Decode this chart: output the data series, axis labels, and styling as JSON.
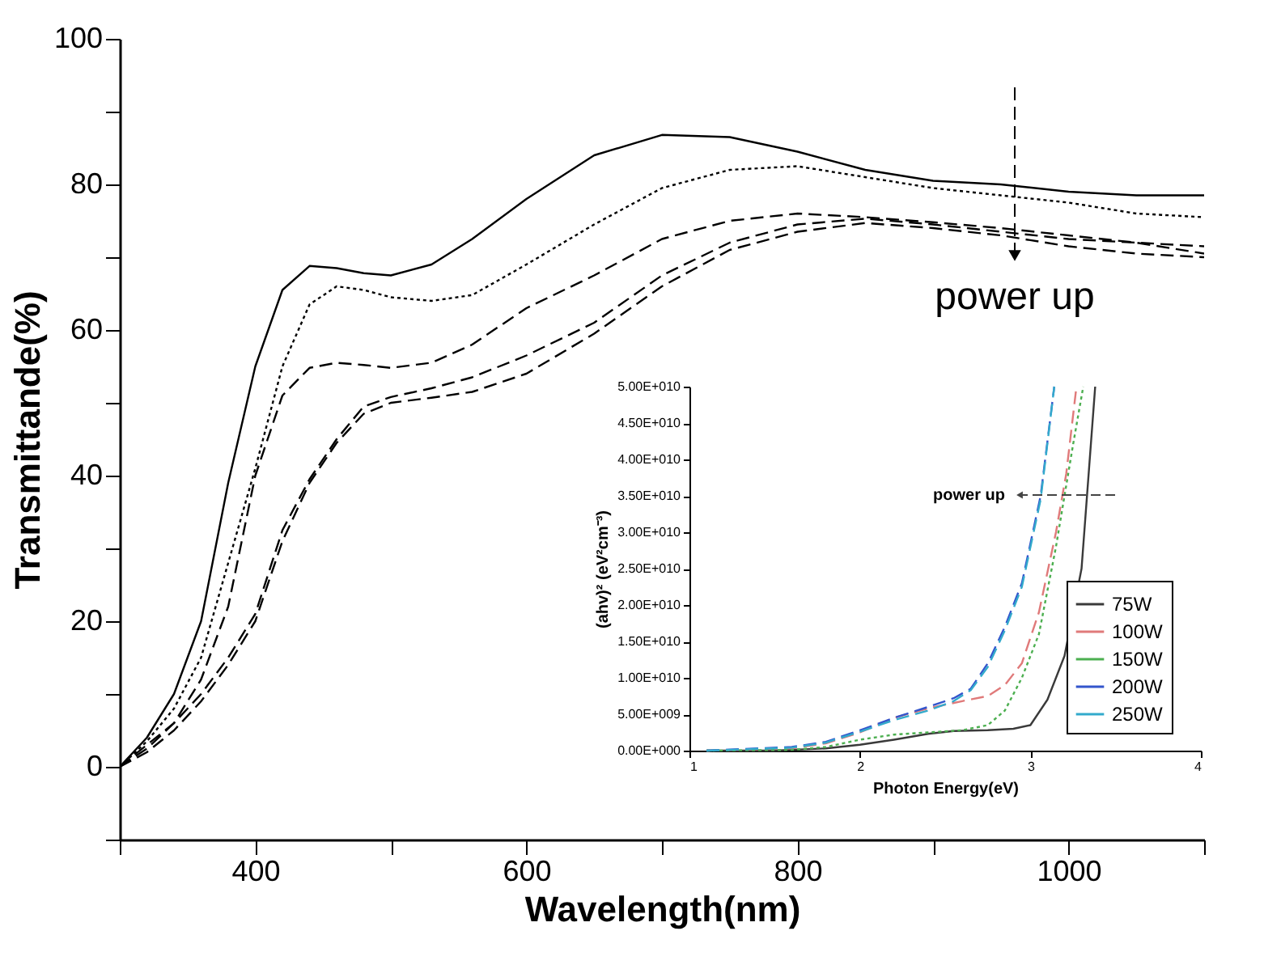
{
  "chart_data": [
    {
      "type": "line",
      "xlabel": "Wavelength(nm)",
      "ylabel": "Transmittande(%)",
      "x": [
        300,
        320,
        340,
        360,
        380,
        400,
        420,
        440,
        460,
        480,
        500,
        530,
        560,
        600,
        650,
        700,
        750,
        800,
        850,
        900,
        950,
        1000,
        1050,
        1100
      ],
      "series": [
        {
          "color": "#000000",
          "line_style": "solid",
          "values": [
            0,
            4,
            10,
            20,
            39,
            55,
            65.5,
            68.8,
            68.5,
            67.8,
            67.5,
            69,
            72.5,
            78,
            84,
            86.8,
            86.5,
            84.5,
            82,
            80.5,
            80,
            79,
            78.5,
            78.5
          ]
        },
        {
          "color": "#000000",
          "line_style": "dotted",
          "values": [
            0,
            3.5,
            8,
            15,
            28,
            41,
            55,
            63.5,
            66,
            65.5,
            64.5,
            64,
            64.8,
            69,
            74.5,
            79.5,
            82,
            82.5,
            81,
            79.5,
            78.5,
            77.5,
            76,
            75.5
          ]
        },
        {
          "color": "#000000",
          "line_style": "dashed",
          "values": [
            0,
            3,
            6,
            12,
            22,
            40,
            51,
            54.8,
            55.5,
            55.2,
            54.8,
            55.5,
            58,
            63,
            67.5,
            72.5,
            75,
            76,
            75.5,
            74.8,
            74,
            73,
            72,
            70.5
          ]
        },
        {
          "color": "#000000",
          "line_style": "dashed",
          "values": [
            0,
            2.5,
            6,
            10,
            15,
            21,
            32.5,
            39.5,
            45,
            49.5,
            50.8,
            52,
            53.5,
            56.5,
            61,
            67.5,
            72,
            74.5,
            75.3,
            74.5,
            73.5,
            72.5,
            72,
            71.5
          ]
        },
        {
          "color": "#000000",
          "line_style": "dashed",
          "values": [
            0,
            2,
            5,
            9,
            14,
            20,
            31,
            39,
            44.5,
            48.5,
            50,
            50.7,
            51.5,
            54,
            59.5,
            66,
            71,
            73.5,
            74.7,
            74,
            73,
            71.5,
            70.5,
            70
          ]
        }
      ],
      "xlim": [
        300,
        1100
      ],
      "xticks": [
        {
          "value": 300,
          "label": null
        },
        400,
        {
          "value": 500,
          "label": null
        },
        600,
        {
          "value": 700,
          "label": null
        },
        800,
        {
          "value": 900,
          "label": null
        },
        1000,
        {
          "value": 1100,
          "label": null
        }
      ],
      "ylim": [
        -10,
        100
      ],
      "yticks": [
        {
          "value": -10,
          "label": null
        },
        0,
        {
          "value": 10,
          "label": null
        },
        20,
        {
          "value": 30,
          "label": null
        },
        40,
        {
          "value": 50,
          "label": null
        },
        60,
        {
          "value": 70,
          "label": null
        },
        80,
        {
          "value": 90,
          "label": null
        },
        100
      ],
      "annotations": [
        "power up"
      ]
    },
    {
      "type": "line",
      "xlabel": "Photon Energy(eV)",
      "ylabel": "(ahv)² (eV²cm⁻³)",
      "legend": "bottom right",
      "series": [
        {
          "name": "75W",
          "color": "#3a3a3a",
          "line_style": "solid",
          "x": [
            1.1,
            1.5,
            1.8,
            2.0,
            2.2,
            2.4,
            2.55,
            2.75,
            2.9,
            3.0,
            3.1,
            3.2,
            3.3,
            3.38
          ],
          "values": [
            0,
            0,
            300000000.0,
            800000000.0,
            1500000000.0,
            2300000000.0,
            2700000000.0,
            2800000000.0,
            3000000000.0,
            3500000000.0,
            7000000000.0,
            13000000000.0,
            25000000000.0,
            50000000000.0
          ]
        },
        {
          "name": "100W",
          "color": "#e07a7a",
          "line_style": "dashed",
          "x": [
            1.1,
            1.6,
            1.8,
            2.0,
            2.2,
            2.4,
            2.6,
            2.75,
            2.85,
            2.95,
            3.05,
            3.15,
            3.21,
            3.27
          ],
          "values": [
            0,
            300000000.0,
            1000000000.0,
            2500000000.0,
            4500000000.0,
            5800000000.0,
            6800000000.0,
            7500000000.0,
            9000000000.0,
            12000000000.0,
            19000000000.0,
            30000000000.0,
            38000000000.0,
            50000000000.0
          ]
        },
        {
          "name": "150W",
          "color": "#4caf50",
          "line_style": "dotted",
          "x": [
            1.1,
            1.6,
            1.8,
            2.0,
            2.2,
            2.4,
            2.6,
            2.75,
            2.85,
            2.95,
            3.05,
            3.15,
            3.25,
            3.31
          ],
          "values": [
            0,
            100000000.0,
            500000000.0,
            1500000000.0,
            2200000000.0,
            2500000000.0,
            2800000000.0,
            3500000000.0,
            5500000000.0,
            10000000000.0,
            16000000000.0,
            28000000000.0,
            42000000000.0,
            50000000000.0
          ]
        },
        {
          "name": "200W",
          "color": "#3355cc",
          "line_style": "dashed",
          "x": [
            1.1,
            1.6,
            1.8,
            2.0,
            2.2,
            2.4,
            2.55,
            2.65,
            2.75,
            2.85,
            2.95,
            3.06,
            3.14
          ],
          "values": [
            0,
            500000000.0,
            1200000000.0,
            2800000000.0,
            4500000000.0,
            6000000000.0,
            7200000000.0,
            8500000000.0,
            12000000000.0,
            17000000000.0,
            23000000000.0,
            35000000000.0,
            50000000000.0
          ]
        },
        {
          "name": "250W",
          "color": "#33aacc",
          "line_style": "dashed",
          "x": [
            1.1,
            1.6,
            1.8,
            2.0,
            2.2,
            2.4,
            2.55,
            2.65,
            2.75,
            2.85,
            2.95,
            3.06,
            3.14
          ],
          "values": [
            0,
            400000000.0,
            1100000000.0,
            2600000000.0,
            4200000000.0,
            5500000000.0,
            6800000000.0,
            8300000000.0,
            11500000000.0,
            16500000000.0,
            22500000000.0,
            34500000000.0,
            50000000000.0
          ]
        }
      ],
      "xlim": [
        1,
        4
      ],
      "xticks": [
        1,
        2,
        3,
        4
      ],
      "ylim": [
        0,
        50000000000.0
      ],
      "yticks": [
        {
          "value": 0,
          "label": "0.00E+000"
        },
        {
          "value": 5000000000.0,
          "label": "5.00E+009"
        },
        {
          "value": 10000000000.0,
          "label": "1.00E+010"
        },
        {
          "value": 15000000000.0,
          "label": "1.50E+010"
        },
        {
          "value": 20000000000.0,
          "label": "2.00E+010"
        },
        {
          "value": 25000000000.0,
          "label": "2.50E+010"
        },
        {
          "value": 30000000000.0,
          "label": "3.00E+010"
        },
        {
          "value": 35000000000.0,
          "label": "3.50E+010"
        },
        {
          "value": 40000000000.0,
          "label": "4.00E+010"
        },
        {
          "value": 45000000000.0,
          "label": "4.50E+010"
        },
        {
          "value": 50000000000.0,
          "label": "5.00E+010"
        }
      ],
      "annotations": [
        "power up"
      ]
    }
  ]
}
